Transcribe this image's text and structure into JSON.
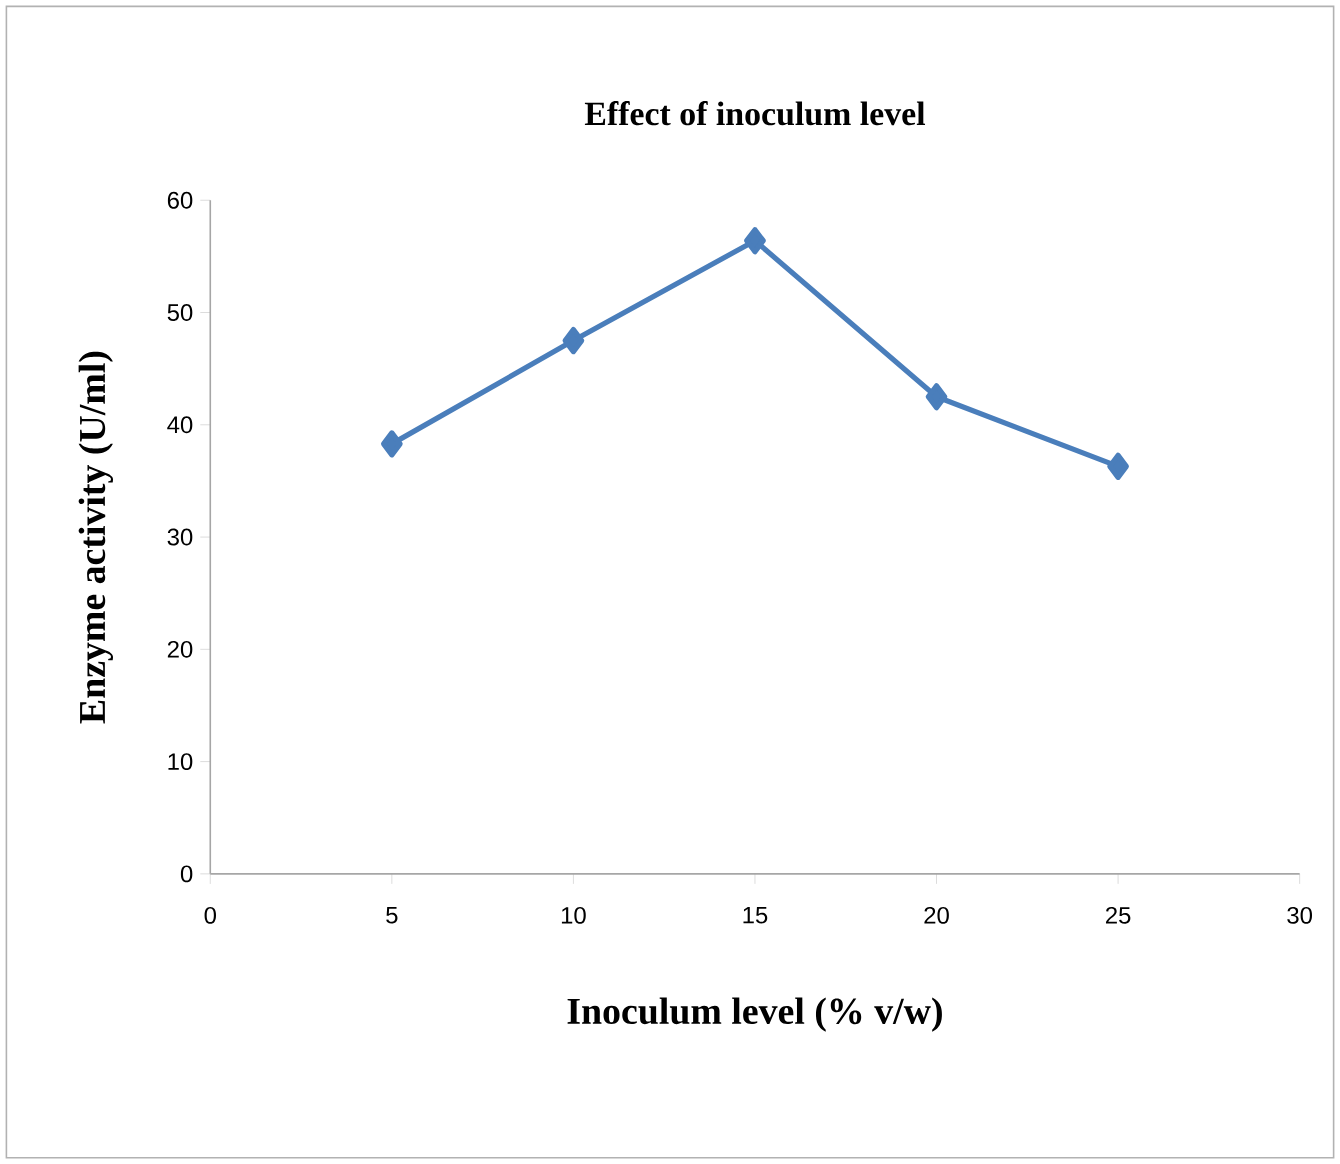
{
  "chart_data": {
    "type": "line",
    "title": "Effect of inoculum level",
    "xlabel": "Inoculum level (% v/w)",
    "ylabel": "Enzyme activity (U/ml)",
    "x": [
      5,
      10,
      15,
      20,
      25
    ],
    "series": [
      {
        "color": "#4a7ebb",
        "values": [
          38.3,
          47.5,
          56.4,
          42.5,
          36.3
        ]
      }
    ],
    "xlim": [
      0,
      30
    ],
    "xticks": [
      0,
      5,
      10,
      15,
      20,
      25,
      30
    ],
    "ylim": [
      0,
      60
    ],
    "yticks": [
      0,
      10,
      20,
      30,
      40,
      50,
      60
    ],
    "grid": false,
    "marker": "diamond",
    "line_style": "solid"
  }
}
